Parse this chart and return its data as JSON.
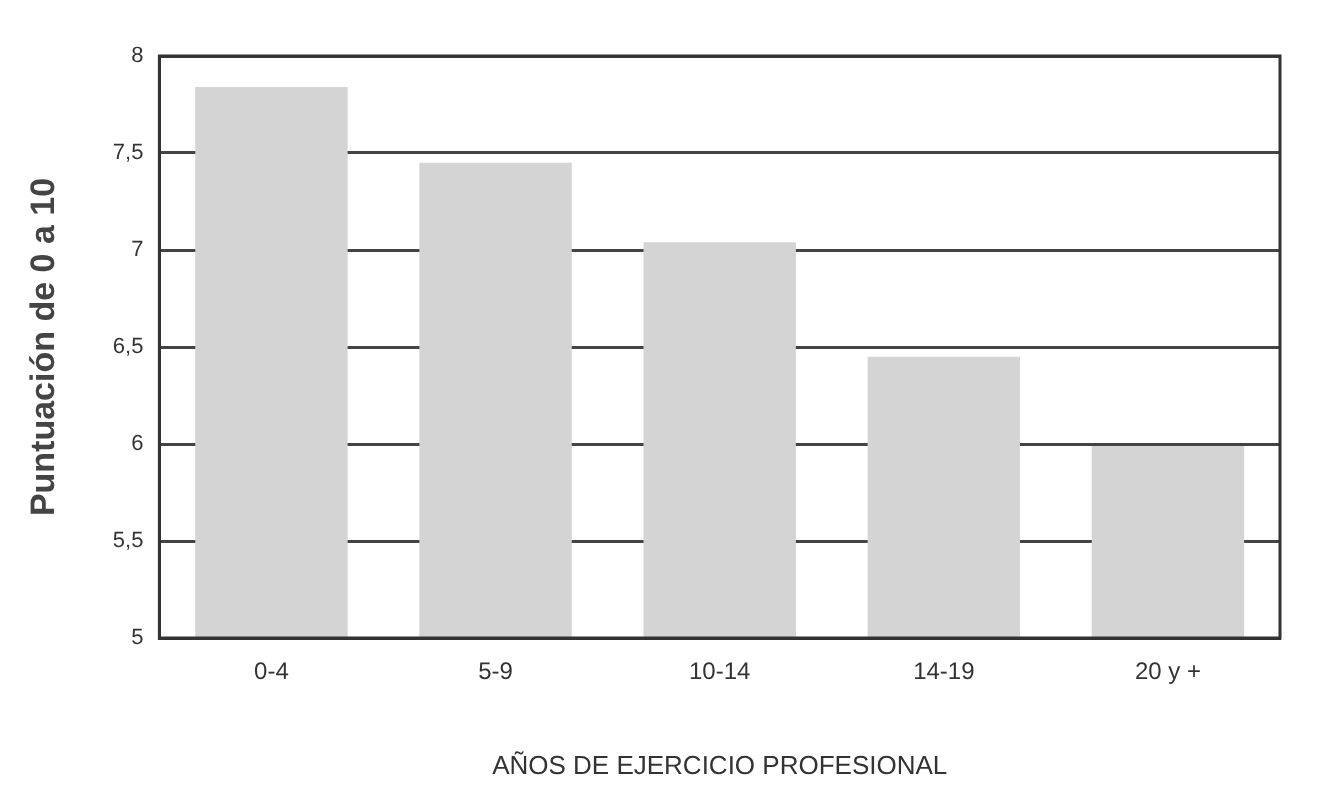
{
  "chart_data": {
    "type": "bar",
    "xlabel": "AÑOS DE EJERCICIO PROFESIONAL",
    "ylabel": "Puntuación de 0 a 10",
    "categories": [
      "0-4",
      "5-9",
      "10-14",
      "14-19",
      "20 y +"
    ],
    "values": [
      7.84,
      7.45,
      7.04,
      6.45,
      5.99
    ],
    "color": "#d4d4d4",
    "ylim": [
      5,
      8
    ],
    "yticks": [
      5,
      {
        "value": 5.5,
        "label": "5,5"
      },
      6,
      {
        "value": 6.5,
        "label": "6,5"
      },
      7,
      {
        "value": 7.5,
        "label": "7,5"
      },
      8
    ],
    "grid": "y",
    "legend": false
  }
}
